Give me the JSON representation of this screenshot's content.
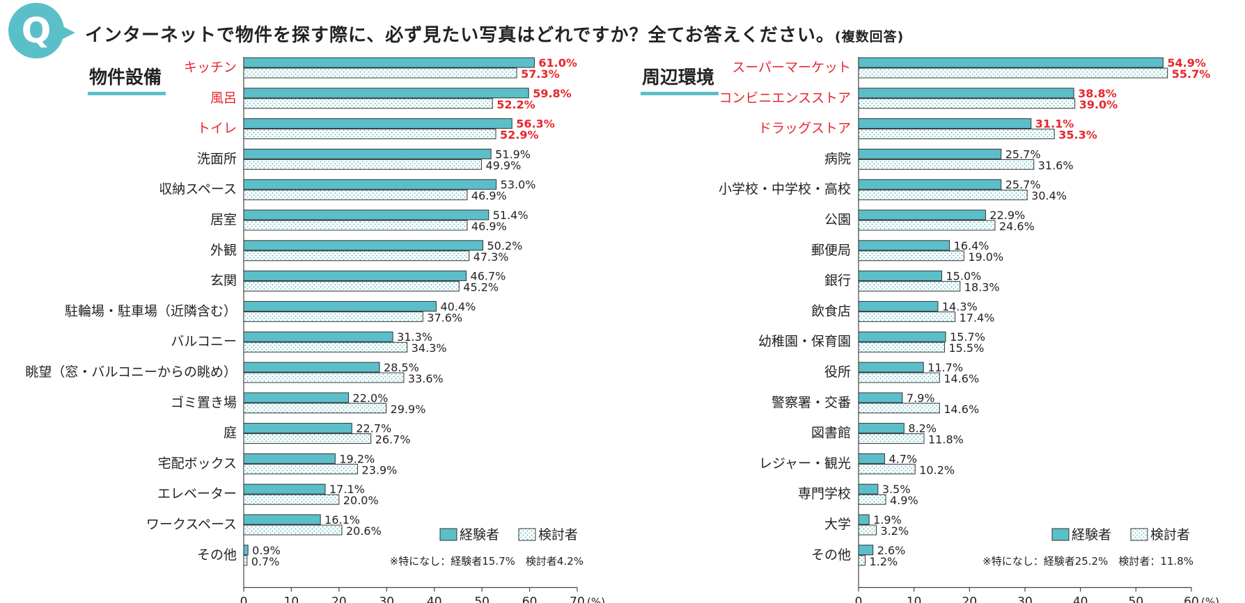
{
  "question": {
    "badge": "Q",
    "text": "インターネットで物件を探す際に、必ず見たい写真はどれですか？全てお答えください。",
    "note": "(複数回答)"
  },
  "legend": {
    "experienced": "経験者",
    "considering": "検討者"
  },
  "colors": {
    "accent": "#5bbfc9",
    "highlight": "#e8262c",
    "dots": "#6cc3c9",
    "text": "#222222"
  },
  "chart_data": [
    {
      "type": "bar",
      "orientation": "horizontal",
      "title": "物件設備",
      "xlabel": "(%)",
      "xlim": [
        0,
        70
      ],
      "xticks": [
        "0",
        "10",
        "20",
        "30",
        "40",
        "50",
        "60",
        "70"
      ],
      "categories": [
        "キッチン",
        "風呂",
        "トイレ",
        "洗面所",
        "収納スペース",
        "居室",
        "外観",
        "玄関",
        "駐輪場・駐車場（近隣含む）",
        "バルコニー",
        "眺望（窓・バルコニーからの眺め）",
        "ゴミ置き場",
        "庭",
        "宅配ボックス",
        "エレベーター",
        "ワークスペース",
        "その他"
      ],
      "highlighted": [
        0,
        1,
        2
      ],
      "series": [
        {
          "name": "経験者",
          "values": [
            61.0,
            59.8,
            56.3,
            51.9,
            53.0,
            51.4,
            50.2,
            46.7,
            40.4,
            31.3,
            28.5,
            22.0,
            22.7,
            19.2,
            17.1,
            16.1,
            0.9
          ]
        },
        {
          "name": "検討者",
          "values": [
            57.3,
            52.2,
            52.9,
            49.9,
            46.9,
            46.9,
            47.3,
            45.2,
            37.6,
            34.3,
            33.6,
            29.9,
            26.7,
            23.9,
            20.0,
            20.6,
            0.7
          ]
        }
      ],
      "value_labels": [
        [
          "61.0%",
          "59.8%",
          "56.3%",
          "51.9%",
          "53.0%",
          "51.4%",
          "50.2%",
          "46.7%",
          "40.4%",
          "31.3%",
          "28.5%",
          "22.0%",
          "22.7%",
          "19.2%",
          "17.1%",
          "16.1%",
          "0.9%"
        ],
        [
          "57.3%",
          "52.2%",
          "52.9%",
          "49.9%",
          "46.9%",
          "46.9%",
          "47.3%",
          "45.2%",
          "37.6%",
          "34.3%",
          "33.6%",
          "29.9%",
          "26.7%",
          "23.9%",
          "20.0%",
          "20.6%",
          "0.7%"
        ]
      ],
      "footnote": "※特になし：経験者15.7%　検討者4.2%",
      "legend_position": "bottom-right"
    },
    {
      "type": "bar",
      "orientation": "horizontal",
      "title": "周辺環境",
      "xlabel": "(%)",
      "xlim": [
        0,
        60
      ],
      "xticks": [
        "0",
        "10",
        "20",
        "30",
        "40",
        "50",
        "60"
      ],
      "categories": [
        "スーパーマーケット",
        "コンビニエンスストア",
        "ドラッグストア",
        "病院",
        "小学校・中学校・高校",
        "公園",
        "郵便局",
        "銀行",
        "飲食店",
        "幼稚園・保育園",
        "役所",
        "警察署・交番",
        "図書館",
        "レジャー・観光",
        "専門学校",
        "大学",
        "その他"
      ],
      "highlighted": [
        0,
        1,
        2
      ],
      "series": [
        {
          "name": "経験者",
          "values": [
            54.9,
            38.8,
            31.1,
            25.7,
            25.7,
            22.9,
            16.4,
            15.0,
            14.3,
            15.7,
            11.7,
            7.9,
            8.2,
            4.7,
            3.5,
            1.9,
            2.6
          ]
        },
        {
          "name": "検討者",
          "values": [
            55.7,
            39.0,
            35.3,
            31.6,
            30.4,
            24.6,
            19.0,
            18.3,
            17.4,
            15.5,
            14.6,
            14.6,
            11.8,
            10.2,
            4.9,
            3.2,
            1.2
          ]
        }
      ],
      "value_labels": [
        [
          "54.9%",
          "38.8%",
          "31.1%",
          "25.7%",
          "25.7%",
          "22.9%",
          "16.4%",
          "15.0%",
          "14.3%",
          "15.7%",
          "11.7%",
          "7.9%",
          "8.2%",
          "4.7%",
          "3.5%",
          "1.9%",
          "2.6%"
        ],
        [
          "55.7%",
          "39.0%",
          "35.3%",
          "31.6%",
          "30.4%",
          "24.6%",
          "19.0%",
          "18.3%",
          "17.4%",
          "15.5%",
          "14.6%",
          "14.6%",
          "11.8%",
          "10.2%",
          "4.9%",
          "3.2%",
          "1.2%"
        ]
      ],
      "footnote": "※特になし：経験者25.2%　検討者：11.8%",
      "legend_position": "bottom-right"
    }
  ]
}
